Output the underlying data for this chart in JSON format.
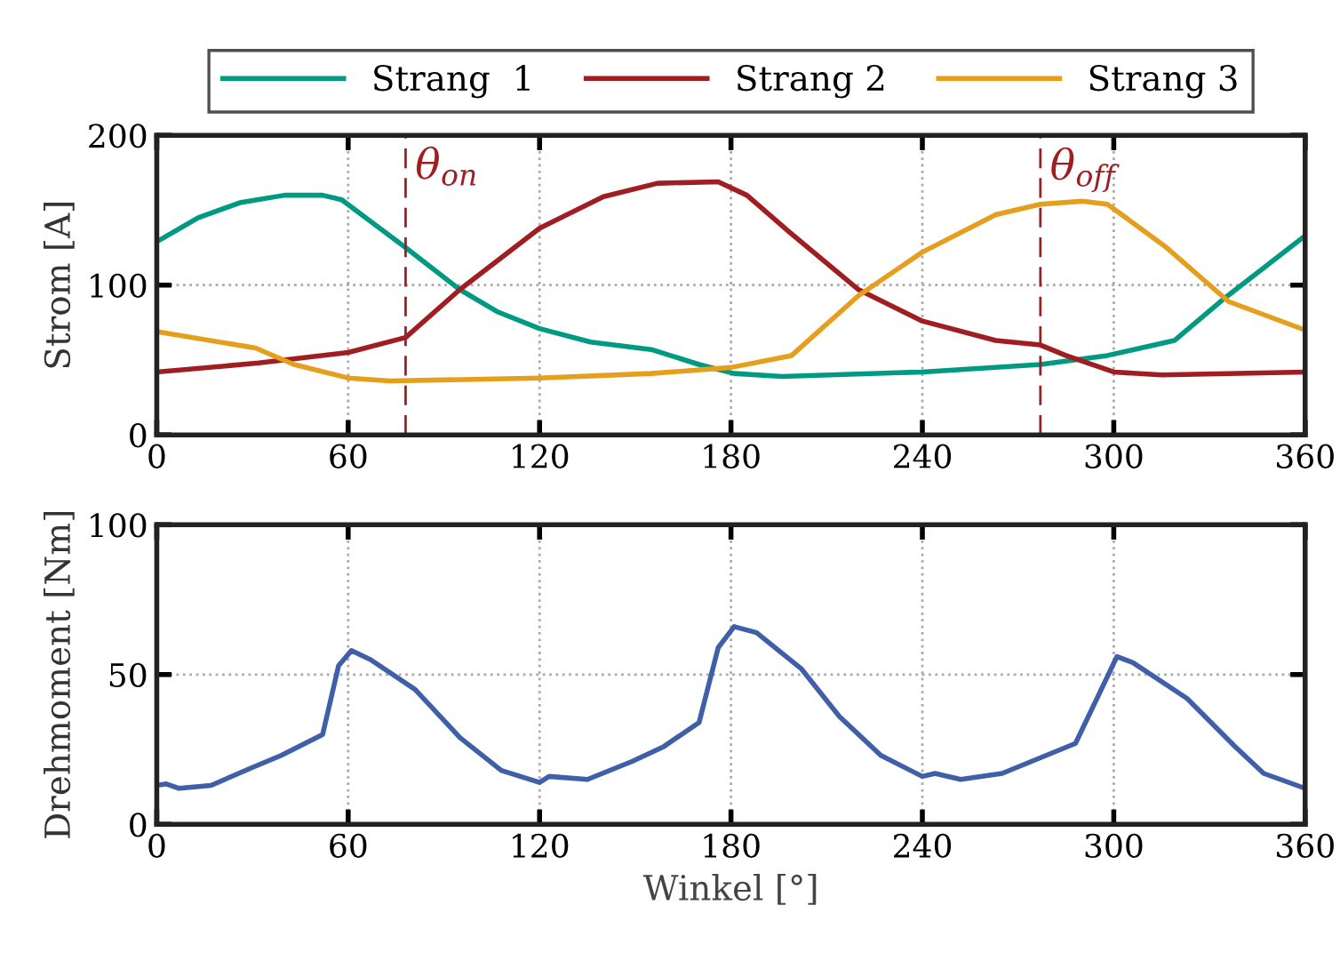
{
  "chart_data": [
    {
      "type": "line",
      "ylabel": "Strom [A]",
      "xlim": [
        0,
        360
      ],
      "xticks": [
        0,
        60,
        120,
        180,
        240,
        300,
        360
      ],
      "ylim": [
        0,
        200
      ],
      "yticks": [
        0,
        100,
        200
      ],
      "grid": true,
      "legend": "top",
      "line_style": "solid",
      "marker": "none",
      "series": [
        {
          "name": "Strang  1",
          "color": "#009a82",
          "x": [
            0,
            13,
            26,
            40,
            52,
            58,
            78,
            95,
            107,
            120,
            136,
            155,
            170,
            181,
            196,
            240,
            277,
            298,
            319,
            334,
            360
          ],
          "values": [
            129,
            145,
            155,
            160,
            160,
            157,
            125,
            97,
            82,
            71,
            62,
            57,
            47,
            41,
            39,
            42,
            47,
            53,
            63,
            90,
            133
          ]
        },
        {
          "name": "Strang 2",
          "color": "#a01e22",
          "x": [
            0,
            32,
            60,
            78,
            95,
            120,
            140,
            157,
            176,
            185,
            198,
            220,
            240,
            263,
            277,
            285,
            300,
            315,
            360
          ],
          "values": [
            42,
            48,
            55,
            65,
            97,
            138,
            159,
            168,
            169,
            160,
            136,
            97,
            76,
            63,
            60,
            53,
            42,
            40,
            42
          ]
        },
        {
          "name": "Strang 3",
          "color": "#e69f1c",
          "x": [
            0,
            31,
            43,
            60,
            73,
            120,
            155,
            180,
            199,
            220,
            240,
            263,
            277,
            290,
            298,
            316,
            336,
            360
          ],
          "values": [
            69,
            58,
            47,
            38,
            36,
            38,
            41,
            45,
            53,
            93,
            122,
            147,
            154,
            156,
            154,
            126,
            89,
            70
          ]
        }
      ],
      "ref_lines": [
        {
          "axis": "x",
          "value": 78,
          "label": "θ$_{on}$",
          "color": "#a01e22",
          "line_style": "dashed"
        },
        {
          "axis": "x",
          "value": 277,
          "label": "θ$_{off}$",
          "color": "#a01e22",
          "line_style": "dashed"
        }
      ]
    },
    {
      "type": "line",
      "xlabel": "Winkel [°]",
      "ylabel": "Drehmoment [Nm]",
      "xlim": [
        0,
        360
      ],
      "xticks": [
        0,
        60,
        120,
        180,
        240,
        300,
        360
      ],
      "ylim": [
        0,
        100
      ],
      "yticks": [
        0,
        50,
        100
      ],
      "grid": true,
      "line_style": "solid",
      "marker": "none",
      "series": [
        {
          "color": "#3f60a8",
          "x": [
            0,
            3,
            7,
            17,
            30,
            39,
            52,
            57,
            61,
            67,
            81,
            95,
            108,
            120,
            123,
            135,
            149,
            159,
            170,
            176,
            181,
            188,
            202,
            214,
            227,
            240,
            244,
            252,
            265,
            288,
            301,
            306,
            323,
            338,
            347,
            360
          ],
          "values": [
            13,
            13.5,
            12,
            13,
            19,
            23,
            30,
            53,
            58,
            55,
            45,
            29,
            18,
            14,
            16,
            15,
            21,
            26,
            34,
            59,
            66,
            64,
            52,
            36,
            23,
            16,
            17,
            15,
            17,
            27,
            56,
            54,
            42,
            26,
            17,
            12
          ]
        }
      ]
    }
  ]
}
